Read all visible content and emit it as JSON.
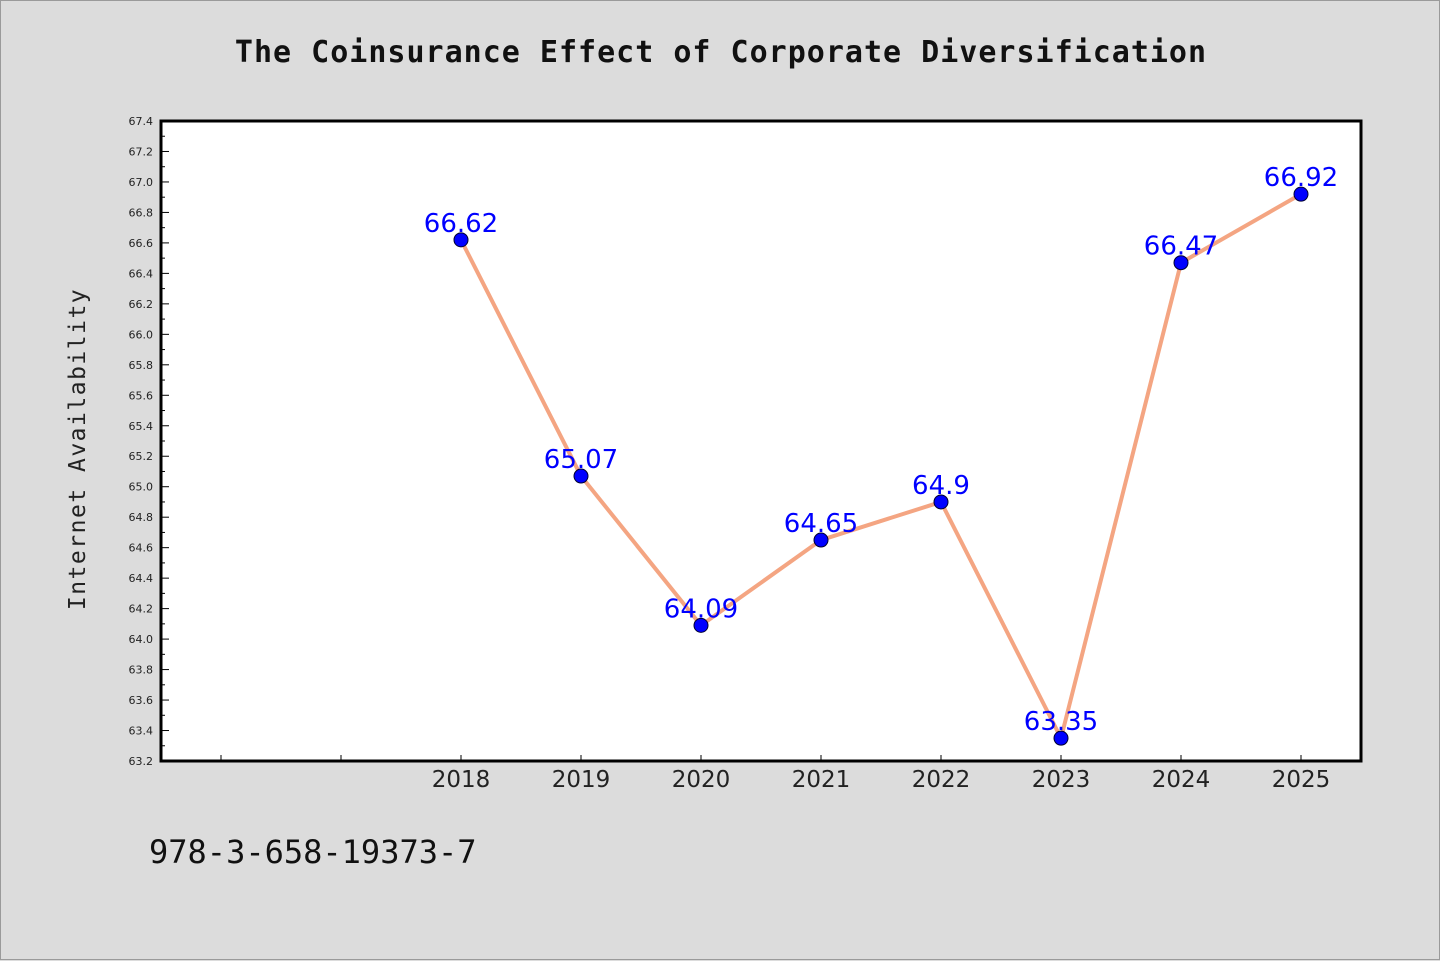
{
  "chart_data": {
    "type": "line",
    "title": "The Coinsurance Effect of Corporate Diversification",
    "xlabel": "",
    "ylabel": "Internet Availability",
    "categories": [
      "2018",
      "2019",
      "2020",
      "2021",
      "2022",
      "2023",
      "2024",
      "2025"
    ],
    "series": [
      {
        "values": [
          66.62,
          65.07,
          64.09,
          64.65,
          64.9,
          63.35,
          66.47,
          66.92
        ],
        "labels": [
          "66.62",
          "65.07",
          "64.09",
          "64.65",
          "64.9",
          "63.35",
          "66.47",
          "66.92"
        ]
      }
    ],
    "ylim": [
      63.2,
      67.4
    ],
    "yticks": [
      "63.2",
      "63.4",
      "63.6",
      "63.8",
      "64.0",
      "64.2",
      "64.4",
      "64.6",
      "64.8",
      "65.0",
      "65.2",
      "65.4",
      "65.6",
      "65.8",
      "66.0",
      "66.2",
      "66.4",
      "66.6",
      "66.8",
      "67.0",
      "67.2",
      "67.4"
    ],
    "grid": false,
    "legend": "none",
    "colors": {
      "line": "#f4a582",
      "marker": "#0000ff",
      "data_label": "#0000ff",
      "background": "#dcdcdc",
      "plot_background": "#ffffff"
    }
  },
  "footer": {
    "identifier": "978-3-658-19373-7"
  }
}
